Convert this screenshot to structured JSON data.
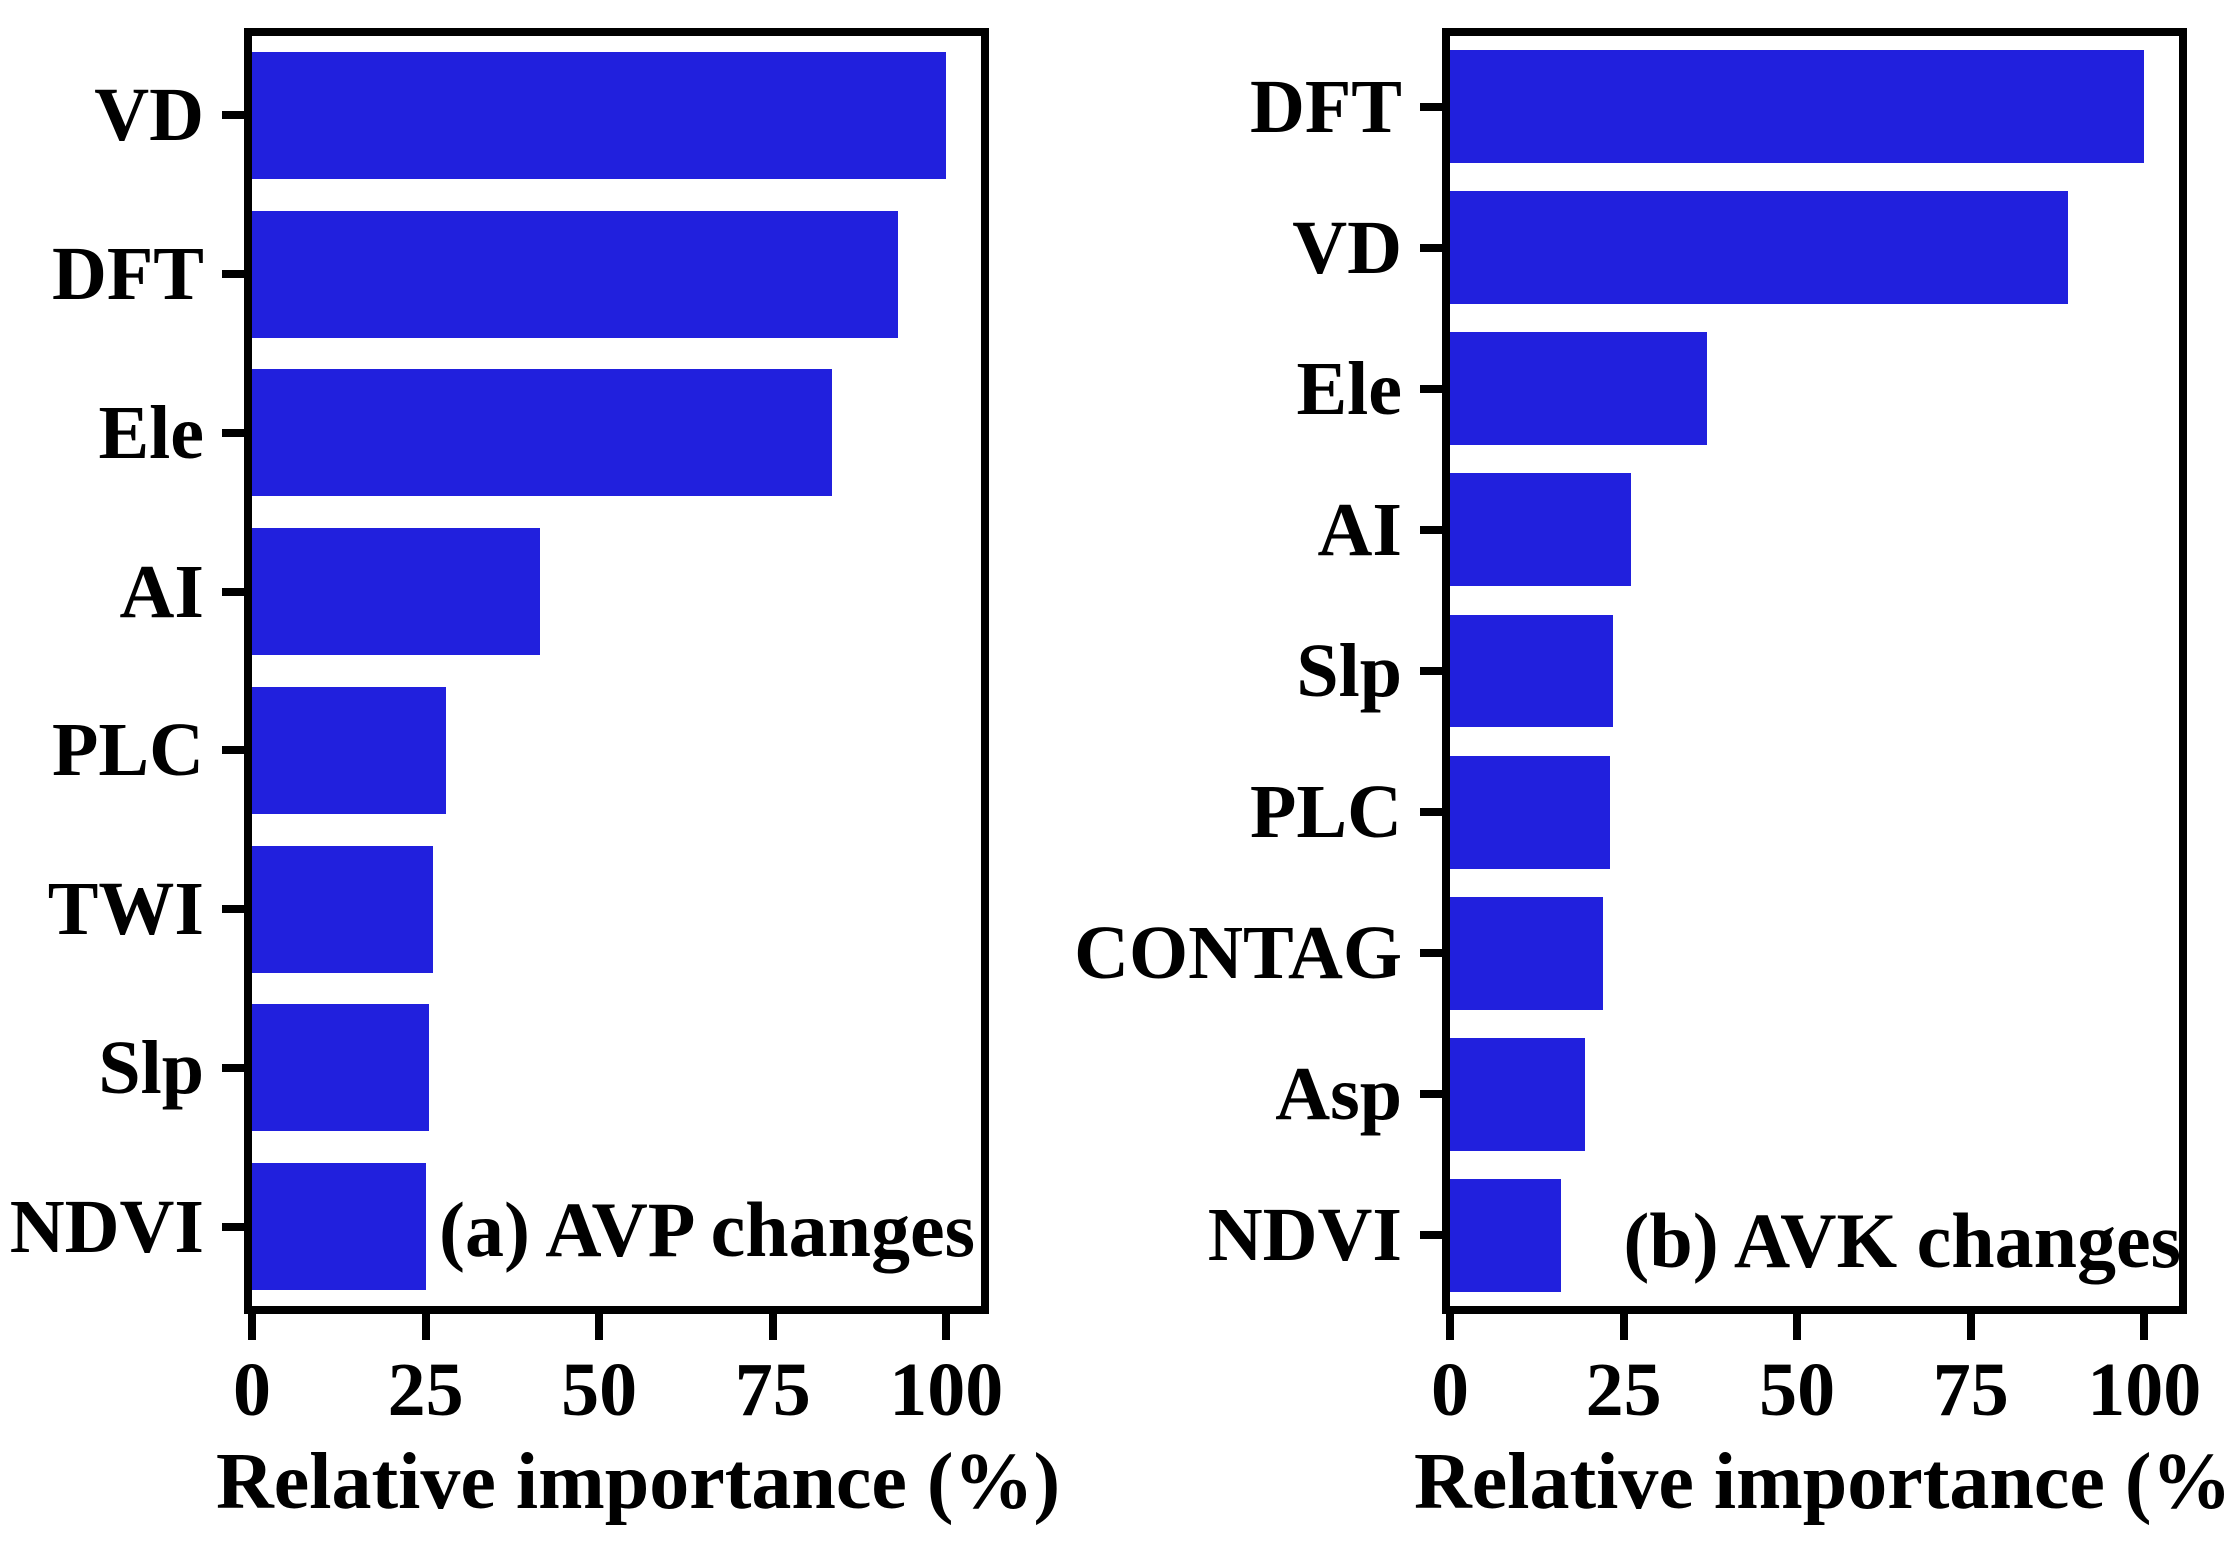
{
  "figure": {
    "bar_color": "#2120dd",
    "axis_color": "#000000",
    "background_color": "#ffffff"
  },
  "chart_data": [
    {
      "type": "bar",
      "orientation": "horizontal",
      "title": "(a) AVP changes",
      "xlabel": "Relative importance (%)",
      "categories": [
        "VD",
        "DFT",
        "Ele",
        "AI",
        "PLC",
        "TWI",
        "Slp",
        "NDVI"
      ],
      "values": [
        100,
        93,
        83.5,
        41.5,
        28,
        26,
        25.5,
        25
      ],
      "xticks": [
        0,
        25,
        50,
        75,
        100
      ],
      "xlim": [
        0,
        105
      ],
      "grid": false,
      "legend": false
    },
    {
      "type": "bar",
      "orientation": "horizontal",
      "title": "(b) AVK changes",
      "xlabel": "Relative importance (%)",
      "categories": [
        "DFT",
        "VD",
        "Ele",
        "AI",
        "Slp",
        "PLC",
        "CONTAG",
        "Asp",
        "NDVI"
      ],
      "values": [
        100,
        89,
        37,
        26,
        23.5,
        23,
        22,
        19.5,
        16
      ],
      "xticks": [
        0,
        25,
        50,
        75,
        100
      ],
      "xlim": [
        0,
        105
      ],
      "grid": false,
      "legend": false
    }
  ]
}
